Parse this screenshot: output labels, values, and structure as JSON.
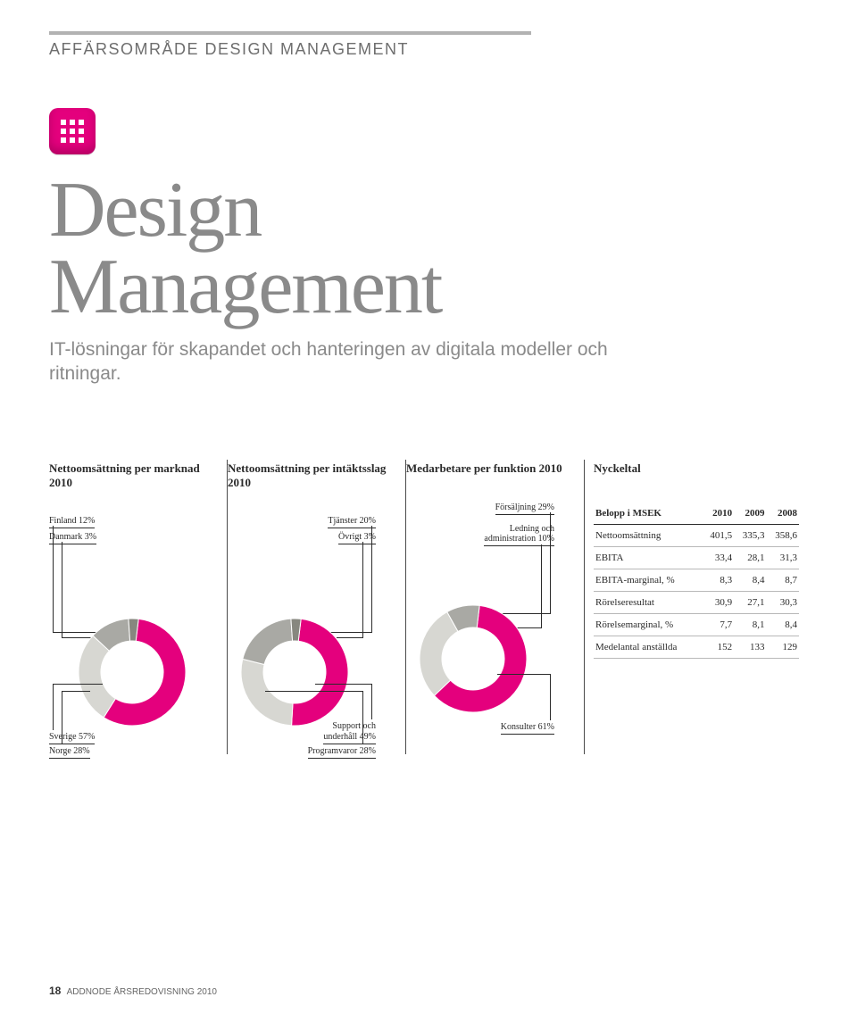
{
  "header": {
    "section_label": "AFFÄRSOMRÅDE DESIGN MANAGEMENT",
    "title_line1": "Design",
    "title_line2": "Management",
    "subtitle": "IT-lösningar för skapandet och hanteringen av digitala modeller och ritningar.",
    "rule_color": "#b2b2b2",
    "icon_bg": "#e4007d"
  },
  "charts": {
    "marknad": {
      "title": "Nettoomsättning per marknad 2010",
      "type": "donut",
      "inner_radius": 35,
      "outer_radius": 60,
      "segments": [
        {
          "label": "Sverige 57%",
          "value": 57,
          "color": "#e4007d"
        },
        {
          "label": "Norge 28%",
          "value": 28,
          "color": "#d7d7d2"
        },
        {
          "label": "Finland 12%",
          "value": 12,
          "color": "#a9a9a4"
        },
        {
          "label": "Danmark 3%",
          "value": 3,
          "color": "#87877f"
        }
      ]
    },
    "intaktsslag": {
      "title": "Nettoomsättning per intäktsslag 2010",
      "type": "donut",
      "inner_radius": 35,
      "outer_radius": 60,
      "segments": [
        {
          "label": "Support och underhåll 49%",
          "value": 49,
          "color": "#e4007d",
          "multiline": "Support och\nunderhåll 49%"
        },
        {
          "label": "Programvaror 28%",
          "value": 28,
          "color": "#d7d7d2"
        },
        {
          "label": "Tjänster 20%",
          "value": 20,
          "color": "#a9a9a4"
        },
        {
          "label": "Övrigt 3%",
          "value": 3,
          "color": "#87877f"
        }
      ]
    },
    "funktion": {
      "title": "Medarbetare per funktion 2010",
      "type": "donut",
      "inner_radius": 35,
      "outer_radius": 60,
      "segments": [
        {
          "label": "Konsulter 61%",
          "value": 61,
          "color": "#e4007d"
        },
        {
          "label": "Försäljning 29%",
          "value": 29,
          "color": "#d7d7d2"
        },
        {
          "label": "Ledning och administration 10%",
          "value": 10,
          "color": "#a9a9a4",
          "multiline": "Ledning och\nadministration 10%"
        }
      ]
    }
  },
  "nyckeltal": {
    "title": "Nyckeltal",
    "header_label": "Belopp i MSEK",
    "years": [
      "2010",
      "2009",
      "2008"
    ],
    "rows": [
      {
        "label": "Nettoomsättning",
        "values": [
          "401,5",
          "335,3",
          "358,6"
        ]
      },
      {
        "label": "EBITA",
        "values": [
          "33,4",
          "28,1",
          "31,3"
        ]
      },
      {
        "label": "EBITA-marginal, %",
        "values": [
          "8,3",
          "8,4",
          "8,7"
        ]
      },
      {
        "label": "Rörelseresultat",
        "values": [
          "30,9",
          "27,1",
          "30,3"
        ]
      },
      {
        "label": "Rörelsemarginal, %",
        "values": [
          "7,7",
          "8,1",
          "8,4"
        ]
      },
      {
        "label": "Medelantal anställda",
        "values": [
          "152",
          "133",
          "129"
        ]
      }
    ]
  },
  "footer": {
    "page": "18",
    "text": "ADDNODE ÅRSREDOVISNING 2010"
  }
}
